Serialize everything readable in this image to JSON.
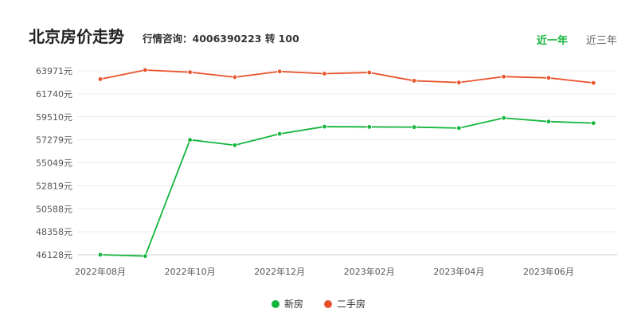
{
  "header": {
    "title": "北京房价走势",
    "consult": "行情咨询：4006390223 转 100",
    "tabs": [
      {
        "label": "近一年",
        "active": true
      },
      {
        "label": "近三年",
        "active": false
      }
    ]
  },
  "colors": {
    "new": "#13b53c",
    "second": "#e8532c",
    "active_tab": "#13b53c"
  },
  "legend": [
    {
      "label": "新房",
      "color": "#13b53c"
    },
    {
      "label": "二手房",
      "color": "#e8532c"
    }
  ],
  "chart_data": {
    "type": "line",
    "title": "",
    "xlabel": "",
    "ylabel": "",
    "x": [
      "2022年08月",
      "2022年09月",
      "2022年10月",
      "2022年11月",
      "2022年12月",
      "2023年01月",
      "2023年02月",
      "2023年03月",
      "2023年04月",
      "2023年05月",
      "2023年06月",
      "2023年07月"
    ],
    "x_tick_labels": [
      "2022年08月",
      "2022年10月",
      "2022年12月",
      "2023年02月",
      "2023年04月",
      "2023年06月"
    ],
    "y_ticks": [
      46128,
      48358,
      50588,
      52819,
      55049,
      57279,
      59510,
      61740,
      63971
    ],
    "y_tick_labels": [
      "46128元",
      "48358元",
      "50588元",
      "52819元",
      "55049元",
      "57279元",
      "59510元",
      "61740元",
      "63971元"
    ],
    "ylim": [
      46128,
      63971
    ],
    "grid": true,
    "legend_position": "bottom",
    "series": [
      {
        "name": "新房",
        "color": "#13b53c",
        "values": [
          46128,
          46000,
          57279,
          56760,
          57860,
          58560,
          58530,
          58510,
          58420,
          59400,
          59050,
          58900
        ]
      },
      {
        "name": "二手房",
        "color": "#e8532c",
        "values": [
          63170,
          64050,
          63840,
          63360,
          63910,
          63700,
          63810,
          63010,
          62840,
          63410,
          63290,
          62800
        ]
      }
    ]
  }
}
